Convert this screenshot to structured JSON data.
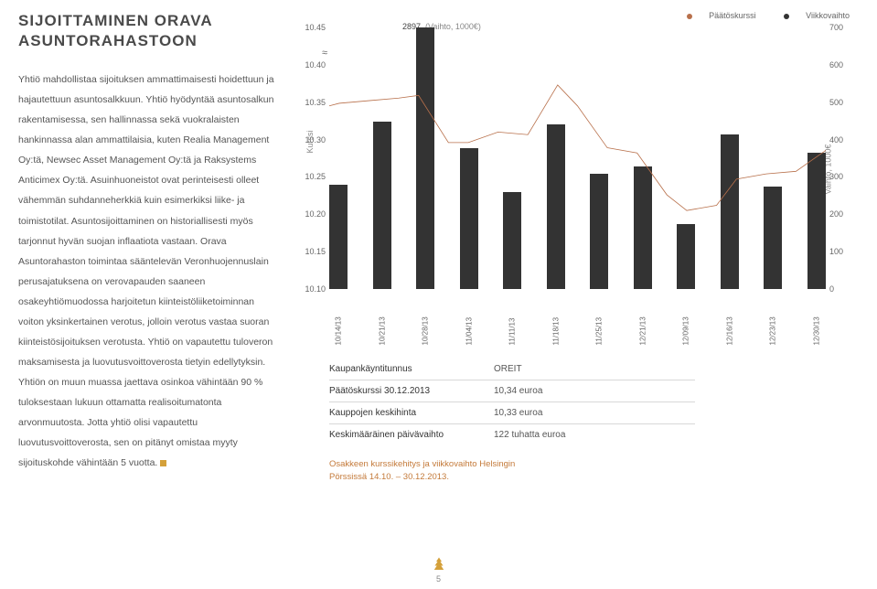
{
  "title_line1": "SIJOITTAMINEN ORAVA",
  "title_line2": "ASUNTORAHASTOON",
  "body": "Yhtiö mahdollistaa sijoituksen ammattimaisesti hoidettuun ja hajautettuun asuntosalkkuun. Yhtiö hyödyntää asuntosalkun rakentamisessa, sen hallinnassa sekä vuokralaisten hankinnassa alan ammattilaisia, kuten Realia Management Oy:tä, Newsec Asset Management Oy:tä ja Raksystems Anticimex Oy:tä.   Asuinhuoneistot ovat perinteisesti olleet vähemmän suhdanneherkkiä kuin esimerkiksi liike- ja toimistotilat. Asuntosijoittaminen on historiallisesti myös tarjonnut hyvän suojan inflaatiota vastaan.   Orava Asuntorahaston toimintaa sääntelevän Veronhuojennuslain perusajatuksena on verovapauden saaneen osakeyhtiömuodossa harjoitetun kiinteistöliiketoiminnan voiton yksinkertainen verotus, jolloin verotus vastaa suoran kiinteistösijoituksen verotusta. Yhtiö on vapautettu tuloveron maksamisesta ja luovutusvoittoverosta tietyin edellytyksin. Yhtiön on muun muassa jaettava osinkoa vähintään 90 % tuloksestaan lukuun ottamatta realisoitumatonta arvonmuutosta. Jotta yhtiö olisi vapautettu luovutusvoittoverosta, sen on pitänyt omistaa myyty sijoituskohde vähintään 5 vuotta.",
  "legend": {
    "paat": "Päätöskurssi",
    "viik": "Viikkovaihto"
  },
  "chart": {
    "peak_value": "2897",
    "peak_suffix": "(Vaihto, 1000€)",
    "y_left_label": "Kurssi",
    "y_right_label": "Vaihto, 1000€",
    "y_left_ticks": [
      "10.45",
      "10.40",
      "10.35",
      "10.30",
      "10.25",
      "10.20",
      "10.15",
      "10.10"
    ],
    "y_right_ticks": [
      "700",
      "600",
      "500",
      "400",
      "300",
      "200",
      "100",
      "0"
    ],
    "x_labels": [
      "10/14/13",
      "10/21/13",
      "10/28/13",
      "11/04/13",
      "11/11/13",
      "11/18/13",
      "11/25/13",
      "12/21/13",
      "12/09/13",
      "12/16/13",
      "12/23/13",
      "12/30/13"
    ],
    "bar_heights_pct": [
      40,
      64,
      100,
      54,
      37,
      63,
      44,
      47,
      25,
      59,
      39,
      52
    ],
    "line_points_pct": [
      [
        0,
        30
      ],
      [
        2,
        29
      ],
      [
        8,
        28
      ],
      [
        14,
        27
      ],
      [
        18,
        26
      ],
      [
        24,
        44
      ],
      [
        28,
        44
      ],
      [
        34,
        40
      ],
      [
        40,
        41
      ],
      [
        46,
        22
      ],
      [
        50,
        30
      ],
      [
        56,
        46
      ],
      [
        62,
        48
      ],
      [
        68,
        64
      ],
      [
        72,
        70
      ],
      [
        78,
        68
      ],
      [
        82,
        58
      ],
      [
        88,
        56
      ],
      [
        94,
        55
      ],
      [
        100,
        47
      ]
    ],
    "bar_color": "#333333",
    "line_color": "#b8704b",
    "background": "#ffffff"
  },
  "table": {
    "rows": [
      {
        "k": "Kaupankäyntitunnus",
        "v": "OREIT"
      },
      {
        "k": "Päätöskurssi 30.12.2013",
        "v": "10,34 euroa"
      },
      {
        "k": "Kauppojen keskihinta",
        "v": "10,33 euroa"
      },
      {
        "k": "Keskimääräinen päivävaihto",
        "v": "122 tuhatta euroa"
      }
    ]
  },
  "caption_line1": "Osakkeen kurssikehitys ja viikkovaihto Helsingin",
  "caption_line2": "Pörssissä 14.10. – 30.12.2013.",
  "page_number": "5"
}
